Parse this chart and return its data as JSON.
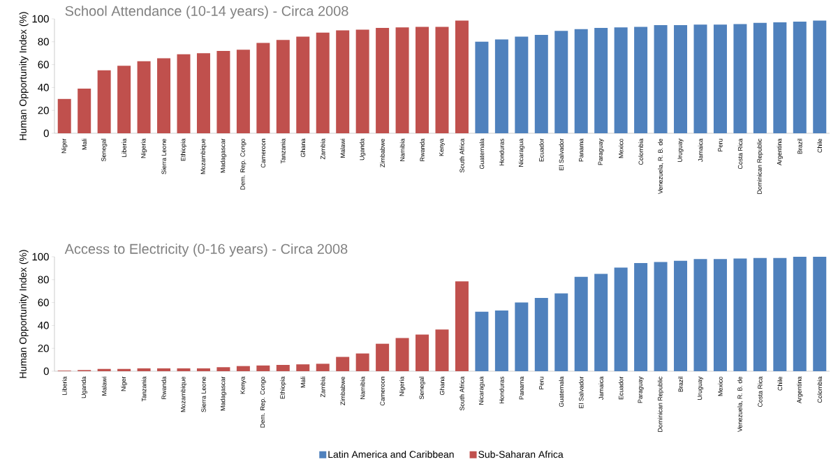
{
  "chart_data": [
    {
      "type": "bar",
      "title": "School Attendance (10-14 years) - Circa 2008",
      "ylabel": "Human Opportunity Index (%)",
      "categories": [
        "Niger",
        "Mali",
        "Senegal",
        "Liberia",
        "Nigeria",
        "Sierra Leone",
        "Ethiopia",
        "Mozambique",
        "Madagascar",
        "Dem. Rep. Congo",
        "Cameroon",
        "Tanzania",
        "Ghana",
        "Zambia",
        "Malawi",
        "Uganda",
        "Zimbabwe",
        "Namibia",
        "Rwanda",
        "Kenya",
        "South Africa",
        "Guatemala",
        "Honduras",
        "Nicaragua",
        "Ecuador",
        "El Salvador",
        "Panama",
        "Paraguay",
        "Mexico",
        "Colombia",
        "Venezuela, R. B. de",
        "Uruguay",
        "Jamaica",
        "Peru",
        "Costa Rica",
        "Dominican Republic",
        "Argentina",
        "Brazil",
        "Chile"
      ],
      "series": [
        {
          "color": "#4f81bd",
          "values": [
            null,
            null,
            null,
            null,
            null,
            null,
            null,
            null,
            null,
            null,
            null,
            null,
            null,
            null,
            null,
            null,
            null,
            null,
            null,
            null,
            null,
            80,
            82,
            84.5,
            86,
            89.5,
            91,
            92,
            92.5,
            93,
            94.5,
            94.5,
            95,
            95,
            95.5,
            96.5,
            97,
            97.5,
            98.5
          ]
        },
        {
          "color": "#c0504d",
          "values": [
            30,
            39,
            55,
            59,
            63,
            65.5,
            69,
            70,
            72,
            73,
            79,
            81.5,
            84.5,
            88,
            90,
            90.5,
            92,
            92.5,
            93,
            93,
            98.5,
            null,
            null,
            null,
            null,
            null,
            null,
            null,
            null,
            null,
            null,
            null,
            null,
            null,
            null,
            null,
            null,
            null,
            null
          ]
        }
      ],
      "ylim": [
        0,
        100
      ],
      "yticks": [
        0,
        20,
        40,
        60,
        80,
        100
      ]
    },
    {
      "type": "bar",
      "title": "Access to Electricity (0-16 years) - Circa 2008",
      "ylabel": "Human Opportunity Index (%)",
      "categories": [
        "Liberia",
        "Uganda",
        "Malawi",
        "Niger",
        "Tanzania",
        "Rwanda",
        "Mozambique",
        "Sierra Leone",
        "Madagascar",
        "Kenya",
        "Dem. Rep. Congo",
        "Ethiopia",
        "Mali",
        "Zambia",
        "Zimbabwe",
        "Namibia",
        "Cameroon",
        "Nigeria",
        "Senegal",
        "Ghana",
        "South Africa",
        "Nicaragua",
        "Honduras",
        "Panama",
        "Peru",
        "Guatemala",
        "El Salvador",
        "Jamaica",
        "Ecuador",
        "Paraguay",
        "Dominican Republic",
        "Brazil",
        "Uruguay",
        "Mexico",
        "Venezuela, R. B. de",
        "Costa Rica",
        "Chile",
        "Argentina",
        "Colombia"
      ],
      "series": [
        {
          "name": "Latin America and Caribbean",
          "color": "#4f81bd",
          "values": [
            null,
            null,
            null,
            null,
            null,
            null,
            null,
            null,
            null,
            null,
            null,
            null,
            null,
            null,
            null,
            null,
            null,
            null,
            null,
            null,
            null,
            52,
            53,
            60,
            64,
            68,
            82.5,
            85,
            90.5,
            94.5,
            95.5,
            96.5,
            98,
            98,
            98.5,
            99,
            99,
            100,
            100
          ]
        },
        {
          "name": "Sub-Saharan Africa",
          "color": "#c0504d",
          "values": [
            0.5,
            1,
            2,
            2,
            2.5,
            2.5,
            2.5,
            2.5,
            3.5,
            4.5,
            5,
            5.5,
            6,
            6.5,
            12.5,
            15.5,
            24,
            29,
            32,
            36.5,
            78.5,
            null,
            null,
            null,
            null,
            null,
            null,
            null,
            null,
            null,
            null,
            null,
            null,
            null,
            null,
            null,
            null,
            null,
            null
          ]
        }
      ],
      "ylim": [
        0,
        100
      ],
      "yticks": [
        0,
        20,
        40,
        60,
        80,
        100
      ],
      "legend": "bottom"
    }
  ]
}
